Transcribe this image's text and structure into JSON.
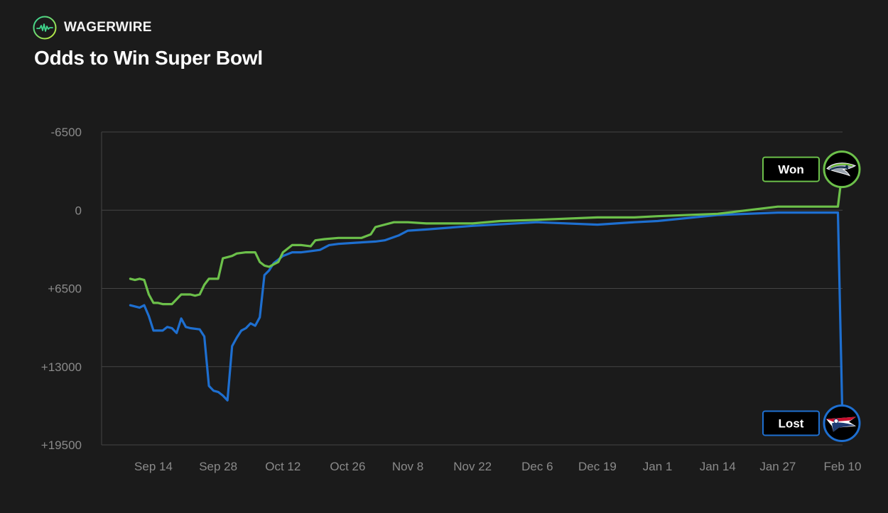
{
  "brand": {
    "name": "WAGERWIRE",
    "logo_icon": "pulse-wave-icon"
  },
  "title": "Odds to Win Super Bowl",
  "colors": {
    "background": "#1b1b1b",
    "grid": "#444444",
    "seahawks": "#6cc04a",
    "patriots": "#1e6fd0"
  },
  "chart_data": {
    "type": "line",
    "title": "Odds to Win Super Bowl",
    "xlabel": "",
    "ylabel": "",
    "x_ticks": [
      "Sep 14",
      "Sep 28",
      "Oct 12",
      "Oct 26",
      "Nov 8",
      "Nov 22",
      "Dec 6",
      "Dec 19",
      "Jan 1",
      "Jan 14",
      "Jan 27",
      "Feb 10"
    ],
    "y_ticks": [
      "-6500",
      "0",
      "+6500",
      "+13000",
      "+19500"
    ],
    "ylim": [
      -6500,
      19500
    ],
    "y_inverted": true,
    "grid": true,
    "series": [
      {
        "team": "Seattle Seahawks",
        "logo_icon": "seahawks-logo-icon",
        "color": "#6cc04a",
        "result": "Won",
        "points": [
          [
            "Sep 9",
            5700
          ],
          [
            "Sep 10",
            5800
          ],
          [
            "Sep 11",
            5700
          ],
          [
            "Sep 12",
            5800
          ],
          [
            "Sep 13",
            7000
          ],
          [
            "Sep 14",
            7700
          ],
          [
            "Sep 15",
            7700
          ],
          [
            "Sep 16",
            7800
          ],
          [
            "Sep 18",
            7800
          ],
          [
            "Sep 19",
            7400
          ],
          [
            "Sep 20",
            7000
          ],
          [
            "Sep 22",
            7000
          ],
          [
            "Sep 23",
            7100
          ],
          [
            "Sep 24",
            7000
          ],
          [
            "Sep 25",
            6200
          ],
          [
            "Sep 26",
            5700
          ],
          [
            "Sep 27",
            5700
          ],
          [
            "Sep 28",
            5700
          ],
          [
            "Sep 29",
            4000
          ],
          [
            "Sep 30",
            3900
          ],
          [
            "Oct 1",
            3800
          ],
          [
            "Oct 2",
            3600
          ],
          [
            "Oct 4",
            3500
          ],
          [
            "Oct 6",
            3500
          ],
          [
            "Oct 7",
            4300
          ],
          [
            "Oct 8",
            4600
          ],
          [
            "Oct 9",
            4700
          ],
          [
            "Oct 10",
            4500
          ],
          [
            "Oct 11",
            4300
          ],
          [
            "Oct 12",
            3500
          ],
          [
            "Oct 14",
            2900
          ],
          [
            "Oct 16",
            2900
          ],
          [
            "Oct 18",
            3000
          ],
          [
            "Oct 19",
            2500
          ],
          [
            "Oct 21",
            2400
          ],
          [
            "Oct 24",
            2300
          ],
          [
            "Oct 29",
            2300
          ],
          [
            "Oct 31",
            2000
          ],
          [
            "Nov 1",
            1400
          ],
          [
            "Nov 5",
            1000
          ],
          [
            "Nov 8",
            1000
          ],
          [
            "Nov 12",
            1100
          ],
          [
            "Nov 22",
            1100
          ],
          [
            "Nov 28",
            900
          ],
          [
            "Dec 6",
            800
          ],
          [
            "Dec 19",
            600
          ],
          [
            "Dec 27",
            600
          ],
          [
            "Jan 1",
            500
          ],
          [
            "Jan 14",
            300
          ],
          [
            "Jan 27",
            -300
          ],
          [
            "Jan 29",
            -300
          ],
          [
            "Feb 9",
            -300
          ],
          [
            "Feb 10",
            -3400
          ]
        ]
      },
      {
        "team": "New England Patriots",
        "logo_icon": "patriots-logo-icon",
        "color": "#1e6fd0",
        "result": "Lost",
        "points": [
          [
            "Sep 9",
            7900
          ],
          [
            "Sep 11",
            8100
          ],
          [
            "Sep 12",
            7900
          ],
          [
            "Sep 13",
            8800
          ],
          [
            "Sep 14",
            10000
          ],
          [
            "Sep 16",
            10000
          ],
          [
            "Sep 17",
            9700
          ],
          [
            "Sep 18",
            9800
          ],
          [
            "Sep 19",
            10200
          ],
          [
            "Sep 20",
            9000
          ],
          [
            "Sep 21",
            9700
          ],
          [
            "Sep 22",
            9800
          ],
          [
            "Sep 24",
            9900
          ],
          [
            "Sep 25",
            10500
          ],
          [
            "Sep 26",
            14600
          ],
          [
            "Sep 27",
            15000
          ],
          [
            "Sep 28",
            15100
          ],
          [
            "Sep 29",
            15400
          ],
          [
            "Sep 30",
            15800
          ],
          [
            "Oct 1",
            11300
          ],
          [
            "Oct 2",
            10600
          ],
          [
            "Oct 3",
            10000
          ],
          [
            "Oct 4",
            9800
          ],
          [
            "Oct 5",
            9400
          ],
          [
            "Oct 6",
            9600
          ],
          [
            "Oct 7",
            8900
          ],
          [
            "Oct 8",
            5400
          ],
          [
            "Oct 9",
            5000
          ],
          [
            "Oct 10",
            4400
          ],
          [
            "Oct 12",
            3800
          ],
          [
            "Oct 14",
            3500
          ],
          [
            "Oct 16",
            3500
          ],
          [
            "Oct 18",
            3400
          ],
          [
            "Oct 20",
            3300
          ],
          [
            "Oct 22",
            2900
          ],
          [
            "Oct 24",
            2800
          ],
          [
            "Oct 28",
            2700
          ],
          [
            "Nov 1",
            2600
          ],
          [
            "Nov 3",
            2500
          ],
          [
            "Nov 6",
            2100
          ],
          [
            "Nov 8",
            1700
          ],
          [
            "Nov 12",
            1600
          ],
          [
            "Nov 22",
            1300
          ],
          [
            "Dec 6",
            1000
          ],
          [
            "Dec 19",
            1200
          ],
          [
            "Dec 27",
            1000
          ],
          [
            "Jan 1",
            900
          ],
          [
            "Jan 14",
            400
          ],
          [
            "Jan 27",
            200
          ],
          [
            "Feb 9",
            200
          ],
          [
            "Feb 10",
            17700
          ]
        ]
      }
    ]
  }
}
